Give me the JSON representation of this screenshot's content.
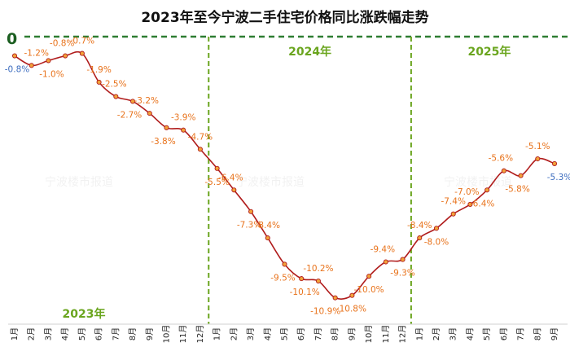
{
  "title": "2023年至今宁波二手住宅价格同比涨跌幅走势",
  "zero_label": "0",
  "watermark": "宁波楼市报道",
  "year_labels": [
    "2023年",
    "2024年",
    "2025年"
  ],
  "colors": {
    "line": "#b01c1c",
    "marker_fill": "#f2a23a",
    "marker_stroke": "#b01c1c",
    "label_default": "#e8731c",
    "label_highlight": "#3d6dbf",
    "divider": "#6aa51e",
    "zero_line": "#2e7d32"
  },
  "chart_data": {
    "type": "line",
    "title": "2023年至今宁波二手住宅价格同比涨跌幅走势",
    "categories": [
      "1月",
      "2月",
      "3月",
      "4月",
      "5月",
      "6月",
      "7月",
      "8月",
      "9月",
      "10月",
      "11月",
      "12月",
      "1月",
      "2月",
      "3月",
      "4月",
      "5月",
      "6月",
      "7月",
      "8月",
      "9月",
      "10月",
      "11月",
      "12月",
      "1月",
      "2月",
      "3月",
      "4月",
      "5月",
      "6月",
      "7月",
      "8月",
      "9月"
    ],
    "series": [
      {
        "values": [
          -0.8,
          -1.2,
          -1.0,
          -0.8,
          -0.7,
          -1.9,
          -2.5,
          -2.7,
          -3.2,
          -3.8,
          -3.9,
          -4.7,
          -5.5,
          -6.4,
          -7.3,
          -8.4,
          -9.5,
          -10.1,
          -10.2,
          -10.9,
          -10.8,
          -10.0,
          -9.4,
          -9.3,
          -8.4,
          -8.0,
          -7.4,
          -7.0,
          -6.4,
          -5.6,
          -5.8,
          -5.1,
          -5.3
        ],
        "labels": [
          "-0.8%",
          "-1.2%",
          "-1.0%",
          "-0.8%",
          "-0.7%",
          "-1.9%",
          "-2.5%",
          "-2.7%",
          "-3.2%",
          "-3.8%",
          "-3.9%",
          "-4.7%",
          "-5.5%",
          "-6.4%",
          "-7.3%",
          "-8.4%",
          "-9.5%",
          "-10.1%",
          "-10.2%",
          "-10.9%",
          "-10.8%",
          "-10.0%",
          "-9.4%",
          "-9.3%",
          "-8.4%",
          "-8.0%",
          "-7.4%",
          "-7.0%",
          "-6.4%",
          "-5.6%",
          "-5.8%",
          "-5.1%",
          "-5.3%"
        ]
      }
    ],
    "years": [
      {
        "label": "2023年",
        "start_index": 0,
        "end_index": 11
      },
      {
        "label": "2024年",
        "start_index": 12,
        "end_index": 23
      },
      {
        "label": "2025年",
        "start_index": 24,
        "end_index": 32
      }
    ],
    "highlighted_points": [
      0,
      32
    ],
    "ylim": [
      -12,
      0
    ],
    "grid": false,
    "legend": "none"
  }
}
